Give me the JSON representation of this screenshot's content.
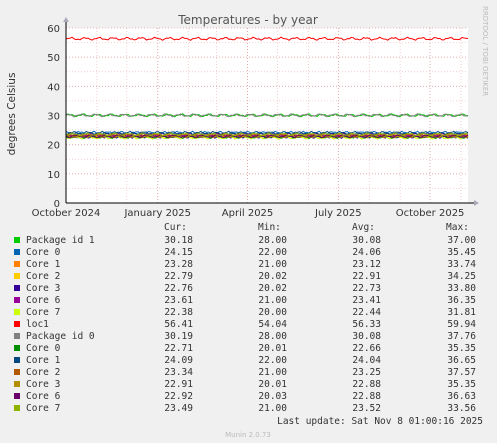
{
  "chart_data": {
    "type": "line",
    "title": "Temperatures - by year",
    "ylabel": "degrees Celsius",
    "xlabel": "",
    "ylim": [
      0,
      60
    ],
    "y_ticks": [
      "0",
      "10",
      "20",
      "30",
      "40",
      "50",
      "60"
    ],
    "x_ticks": [
      "October 2024",
      "January 2025",
      "April 2025",
      "July 2025",
      "October 2025"
    ],
    "x_range": [
      "2024-10-01",
      "2025-11-08"
    ],
    "grid": true,
    "side_label": "RRDTOOL / TOBI OETIKER",
    "legend_headers": {
      "cur": "Cur:",
      "min": "Min:",
      "avg": "Avg:",
      "max": "Max:"
    },
    "series": [
      {
        "name": "Package id 1",
        "color": "#00cc00",
        "cur": "30.18",
        "min": "28.00",
        "avg": "30.08",
        "max": "37.00",
        "level": 30.08
      },
      {
        "name": "Core 0",
        "color": "#0066b3",
        "cur": "24.15",
        "min": "22.00",
        "avg": "24.06",
        "max": "35.45",
        "level": 24.06
      },
      {
        "name": "Core 1",
        "color": "#ff8000",
        "cur": "23.28",
        "min": "21.00",
        "avg": "23.12",
        "max": "33.74",
        "level": 23.12
      },
      {
        "name": "Core 2",
        "color": "#ffcc00",
        "cur": "22.79",
        "min": "20.02",
        "avg": "22.91",
        "max": "34.25",
        "level": 22.91
      },
      {
        "name": "Core 3",
        "color": "#330099",
        "cur": "22.76",
        "min": "20.02",
        "avg": "22.73",
        "max": "33.80",
        "level": 22.73
      },
      {
        "name": "Core 6",
        "color": "#990099",
        "cur": "23.61",
        "min": "21.00",
        "avg": "23.41",
        "max": "36.35",
        "level": 23.41
      },
      {
        "name": "Core 7",
        "color": "#ccff00",
        "cur": "22.38",
        "min": "20.00",
        "avg": "22.44",
        "max": "31.81",
        "level": 22.44
      },
      {
        "name": "loc1",
        "color": "#ff0000",
        "cur": "56.41",
        "min": "54.04",
        "avg": "56.33",
        "max": "59.94",
        "level": 56.33
      },
      {
        "name": "Package id 0",
        "color": "#808080",
        "cur": "30.19",
        "min": "28.00",
        "avg": "30.08",
        "max": "37.76",
        "level": 30.08
      },
      {
        "name": "Core 0",
        "color": "#008f00",
        "cur": "22.71",
        "min": "20.01",
        "avg": "22.66",
        "max": "35.35",
        "level": 22.66
      },
      {
        "name": "Core 1",
        "color": "#00487d",
        "cur": "24.09",
        "min": "22.00",
        "avg": "24.04",
        "max": "36.65",
        "level": 24.04
      },
      {
        "name": "Core 2",
        "color": "#b35a00",
        "cur": "23.34",
        "min": "21.00",
        "avg": "23.25",
        "max": "37.57",
        "level": 23.25
      },
      {
        "name": "Core 3",
        "color": "#b38f00",
        "cur": "22.91",
        "min": "20.01",
        "avg": "22.88",
        "max": "35.35",
        "level": 22.88
      },
      {
        "name": "Core 6",
        "color": "#6b006b",
        "cur": "22.92",
        "min": "20.03",
        "avg": "22.88",
        "max": "36.63",
        "level": 22.88
      },
      {
        "name": "Core 7",
        "color": "#8fb300",
        "cur": "23.49",
        "min": "21.00",
        "avg": "23.52",
        "max": "33.56",
        "level": 23.52
      }
    ]
  },
  "footer": {
    "last_update": "Last update: Sat Nov  8 01:00:16 2025",
    "version": "Munin 2.0.73"
  }
}
